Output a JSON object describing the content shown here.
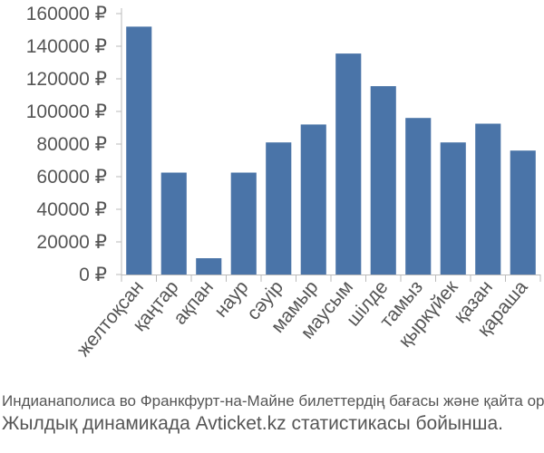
{
  "chart_data": {
    "type": "bar",
    "categories": [
      "желтоқсан",
      "қаңтар",
      "ақпан",
      "наур",
      "сәуір",
      "мамыр",
      "маусым",
      "шілде",
      "тамыз",
      "қыркүйек",
      "қазан",
      "қараша"
    ],
    "values": [
      152000,
      62500,
      10000,
      62500,
      81000,
      92000,
      135500,
      115500,
      96000,
      81000,
      92500,
      76000
    ],
    "ylim": [
      0,
      160000
    ],
    "yticks": [
      0,
      20000,
      40000,
      60000,
      80000,
      100000,
      120000,
      140000,
      160000
    ],
    "ytick_labels": [
      "0 ₽",
      "20000 ₽",
      "40000 ₽",
      "60000 ₽",
      "80000 ₽",
      "100000 ₽",
      "120000 ₽",
      "140000 ₽",
      "160000 ₽"
    ],
    "bar_color": "#4a74a8",
    "grid": false,
    "legend": "none"
  },
  "caption": {
    "line1": "Индианаполиса во Франкфурт-на-Майне билеттердің бағасы және қайта оралу",
    "line2": "Жылдық динамикада Avticket.kz статистикасы бойынша."
  }
}
